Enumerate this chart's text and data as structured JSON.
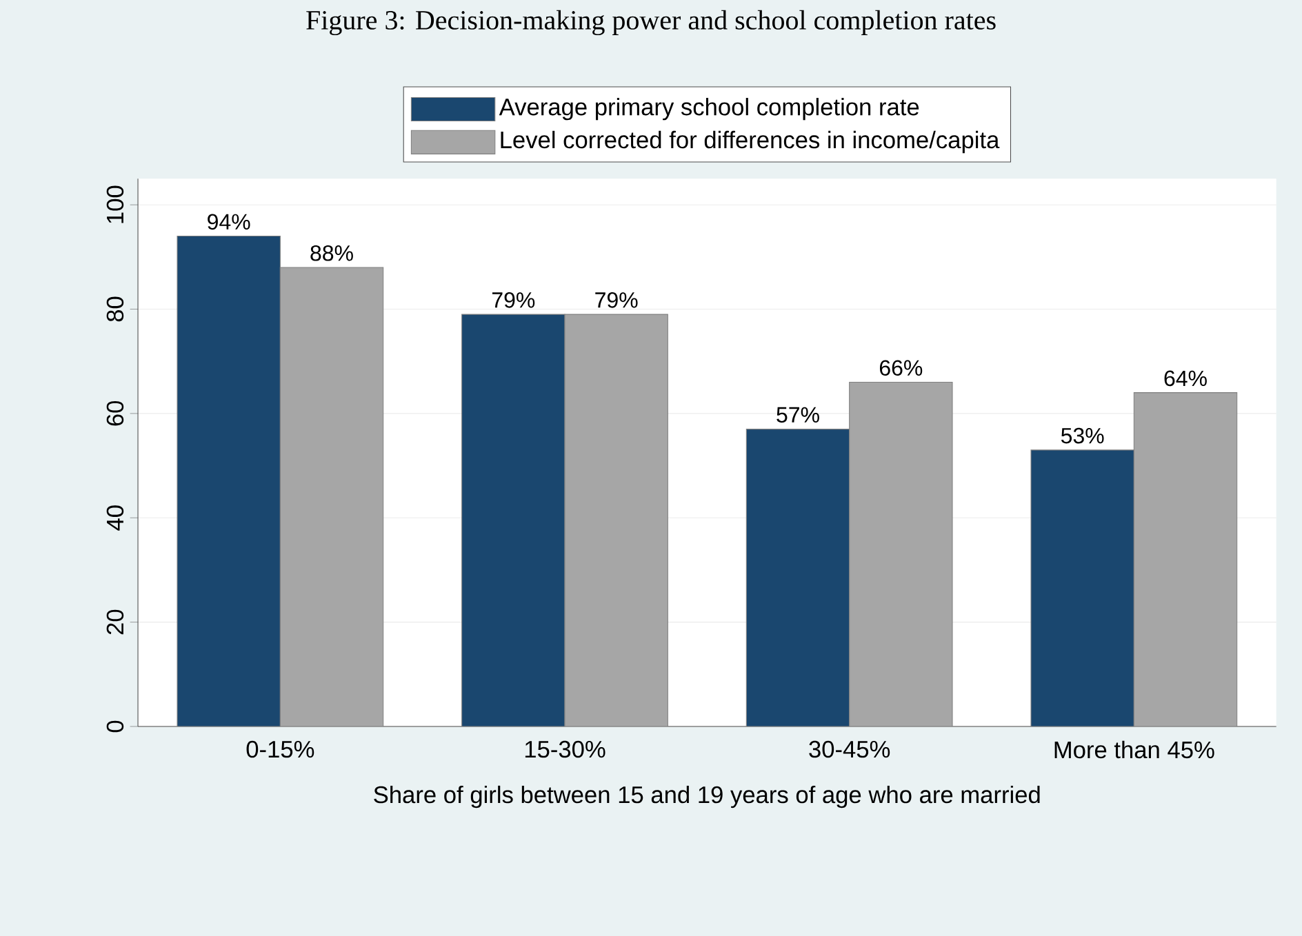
{
  "chart_data": {
    "type": "bar",
    "title": "Figure 3: Decision-making power and school completion rates",
    "xlabel": "Share of girls between 15 and 19 years of age who are married",
    "categories": [
      "0-15%",
      "15-30%",
      "30-45%",
      "More than 45%"
    ],
    "series": [
      {
        "name": "Average primary school completion rate",
        "color": "#1a476f",
        "values": [
          94,
          79,
          57,
          53
        ],
        "value_labels": [
          "94%",
          "79%",
          "57%",
          "53%"
        ]
      },
      {
        "name": "Level corrected for differences in income/capita",
        "color": "#a6a6a6",
        "values": [
          88,
          79,
          66,
          64
        ],
        "value_labels": [
          "88%",
          "79%",
          "66%",
          "64%"
        ]
      }
    ],
    "ylim": [
      0,
      105
    ],
    "yticks": [
      0,
      20,
      40,
      60,
      80,
      100
    ],
    "grid": "y",
    "legend": "top"
  }
}
